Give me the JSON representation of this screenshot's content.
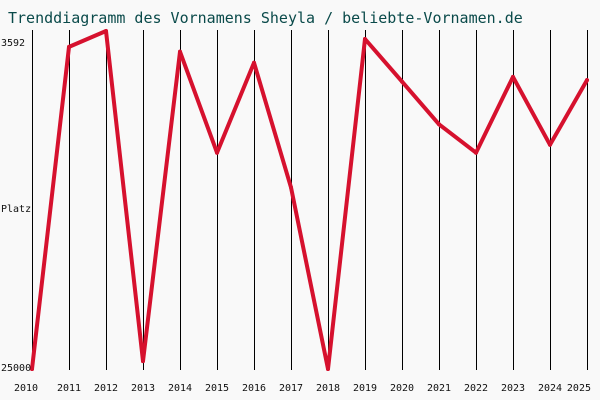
{
  "chart_data": {
    "type": "line",
    "title": "Trenddiagramm des Vornamens Sheyla / beliebte-Vornamen.de",
    "ylabel": "Platz",
    "y_tick_labels": [
      "3592",
      "25000"
    ],
    "ylim": [
      3592,
      25000
    ],
    "y_inverted": true,
    "grid": true,
    "x": [
      "2010",
      "2011",
      "2012",
      "2013",
      "2014",
      "2015",
      "2016",
      "2017",
      "2018",
      "2019",
      "2020",
      "2021",
      "2022",
      "2023",
      "2024",
      "2025"
    ],
    "series": [
      {
        "values": [
          25000,
          4600,
          3592,
          24500,
          4900,
          11300,
          5600,
          13500,
          25000,
          4100,
          6800,
          9500,
          11300,
          6500,
          10800,
          6700
        ]
      }
    ],
    "colors": {
      "line": "#D6112E",
      "grid": "#000000",
      "background": "#F9F9F9",
      "title": "#0A4A4A"
    }
  }
}
